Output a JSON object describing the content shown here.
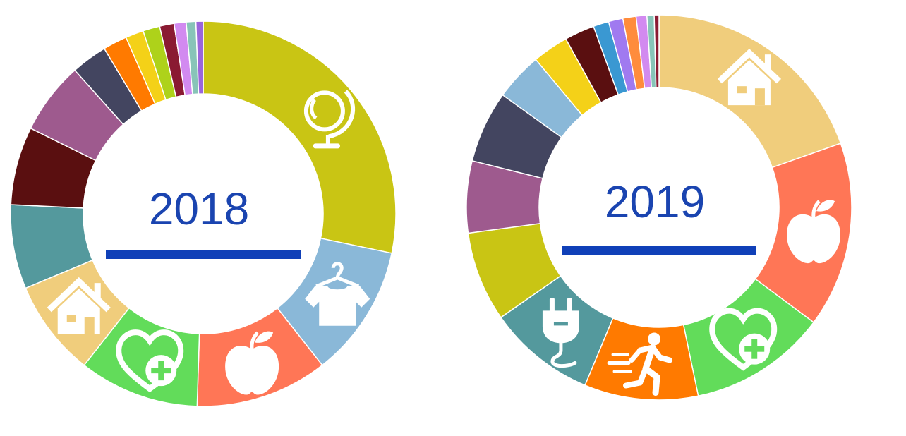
{
  "chart_data": [
    {
      "type": "pie",
      "title": "2018",
      "accent_color": "#1040b8",
      "slices": [
        {
          "value": 28.0,
          "color": "#c9c514",
          "icon": "globe-icon"
        },
        {
          "value": 11.0,
          "color": "#8ab8d8",
          "icon": "clothes-hanger-icon"
        },
        {
          "value": 11.0,
          "color": "#ff7656",
          "icon": "apple-icon"
        },
        {
          "value": 10.0,
          "color": "#62dc5a",
          "icon": "heart-plus-icon"
        },
        {
          "value": 8.0,
          "color": "#f0cd7c",
          "icon": "house-icon"
        },
        {
          "value": 7.0,
          "color": "#54999d",
          "icon": ""
        },
        {
          "value": 6.5,
          "color": "#5a0f10",
          "icon": ""
        },
        {
          "value": 6.0,
          "color": "#9e5a8e",
          "icon": ""
        },
        {
          "value": 3.0,
          "color": "#434560",
          "icon": ""
        },
        {
          "value": 2.0,
          "color": "#ff7a00",
          "icon": ""
        },
        {
          "value": 1.5,
          "color": "#f4d118",
          "icon": ""
        },
        {
          "value": 1.4,
          "color": "#aed21a",
          "icon": ""
        },
        {
          "value": 1.2,
          "color": "#8a1a32",
          "icon": ""
        },
        {
          "value": 1.0,
          "color": "#d28af0",
          "icon": ""
        },
        {
          "value": 0.8,
          "color": "#88c4b8",
          "icon": ""
        },
        {
          "value": 0.6,
          "color": "#9a66dc",
          "icon": ""
        }
      ]
    },
    {
      "type": "pie",
      "title": "2019",
      "accent_color": "#1040b8",
      "slices": [
        {
          "value": 19.5,
          "color": "#f0cd7c",
          "icon": "house-icon"
        },
        {
          "value": 15.5,
          "color": "#ff7656",
          "icon": "apple-icon"
        },
        {
          "value": 11.5,
          "color": "#62dc5a",
          "icon": "heart-plus-icon"
        },
        {
          "value": 9.5,
          "color": "#ff7a00",
          "icon": "running-person-icon"
        },
        {
          "value": 9.0,
          "color": "#54999d",
          "icon": "power-plug-icon"
        },
        {
          "value": 7.5,
          "color": "#c9c514",
          "icon": ""
        },
        {
          "value": 6.0,
          "color": "#9e5a8e",
          "icon": ""
        },
        {
          "value": 6.0,
          "color": "#434560",
          "icon": ""
        },
        {
          "value": 4.0,
          "color": "#8ab8d8",
          "icon": ""
        },
        {
          "value": 3.0,
          "color": "#f4d118",
          "icon": ""
        },
        {
          "value": 2.5,
          "color": "#5a0f10",
          "icon": ""
        },
        {
          "value": 1.3,
          "color": "#3a98d2",
          "icon": ""
        },
        {
          "value": 1.2,
          "color": "#a07af0",
          "icon": ""
        },
        {
          "value": 1.1,
          "color": "#ff8c3c",
          "icon": ""
        },
        {
          "value": 0.9,
          "color": "#d28af0",
          "icon": ""
        },
        {
          "value": 0.6,
          "color": "#88c4b8",
          "icon": ""
        },
        {
          "value": 0.4,
          "color": "#8a1a32",
          "icon": ""
        }
      ]
    }
  ]
}
